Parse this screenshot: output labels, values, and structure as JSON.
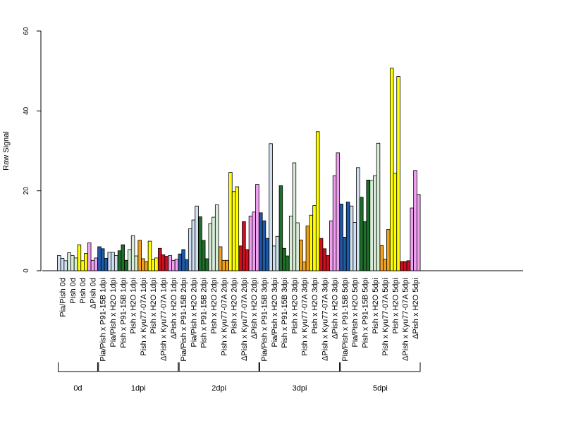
{
  "chart_data": {
    "type": "bar",
    "ylabel": "Raw Signal",
    "xlabel": "",
    "ylim": [
      0,
      60
    ],
    "yticks": [
      0,
      20,
      40,
      60
    ],
    "grid": false,
    "legend": "none",
    "categories": [
      "Pia/Pish 0d",
      "Pish 0d",
      "Pish 0d",
      "ΔPish 0d",
      "Pia/Pish x P91-15B 1dpi",
      "Pia/Pish x H2O 1dpi",
      "Pish x P91-15B 1dpi",
      "Pish x H2O 1dpi",
      "Pish x Kyu77-07A 1dpi",
      "Pish x H2O 1dpi",
      "ΔPish x Kyu77-07A 1dpi",
      "ΔPish x H2O 1dpi",
      "Pia/Pish x P91-15B 2dpi",
      "Pia/Pish x H2O 2dpi",
      "Pish x P91-15B 2dpi",
      "Pish x H2O 2dpi",
      "Pish x Kyu77-07A 2dpi",
      "Pish x H2O 2dpi",
      "ΔPish x Kyu77-07A 2dpi",
      "ΔPish x H2O 2dpi",
      "Pia/Pish x P91-15B 3dpi",
      "Pia/Pish x H2O 3dpi",
      "Pish x P91-15B 3dpi",
      "Pish x H2O 3dpi",
      "Pish x Kyu77-07A 3dpi",
      "Pish x H2O 3dpi",
      "ΔPish x Kyu77-07A 3dpi",
      "ΔPish x H2O 3dpi",
      "Pia/Pish x P91-15B 5dpi",
      "Pia/Pish x H2O 5dpi",
      "Pish x P91-15B 5dpi",
      "Pish x H2O 5dpi",
      "Pish x Kyu77-07A 5dpi",
      "Pish x H2O 5dpi",
      "ΔPish x Kyu77-07A 5dpi",
      "ΔPish x H2O 5dpi"
    ],
    "colors": [
      "#d0e0f0",
      "#d8ecd8",
      "#ffff00",
      "#f0a0f0",
      "#1f5aa6",
      "#d0e0f0",
      "#1f6e2a",
      "#d8ecd8",
      "#f0a020",
      "#ffff00",
      "#cc1020",
      "#f0a0f0",
      "#1f5aa6",
      "#d0e0f0",
      "#1f6e2a",
      "#d8ecd8",
      "#f0a020",
      "#ffff00",
      "#cc1020",
      "#f0a0f0",
      "#1f5aa6",
      "#d0e0f0",
      "#1f6e2a",
      "#d8ecd8",
      "#f0a020",
      "#ffff00",
      "#cc1020",
      "#f0a0f0",
      "#1f5aa6",
      "#d0e0f0",
      "#1f6e2a",
      "#d8ecd8",
      "#f0a020",
      "#ffff00",
      "#cc1020",
      "#f0a0f0"
    ],
    "values": [
      [
        3.8,
        3.1,
        2.5
      ],
      [
        4.5,
        3.8,
        3.2
      ],
      [
        6.5,
        2.5,
        4.3
      ],
      [
        7.0,
        2.6,
        3.2
      ],
      [
        6.0,
        5.5,
        3.1
      ],
      [
        4.6,
        4.6,
        3.8
      ],
      [
        5.0,
        6.5,
        2.6
      ],
      [
        5.3,
        8.8,
        3.7
      ],
      [
        7.6,
        3.0,
        2.3
      ],
      [
        7.4,
        2.8,
        3.2
      ],
      [
        5.6,
        4.0,
        3.6
      ],
      [
        3.8,
        2.6,
        2.9
      ],
      [
        4.2,
        5.3,
        2.8
      ],
      [
        10.5,
        12.7,
        16.2
      ],
      [
        13.5,
        7.6,
        3.0
      ],
      [
        11.8,
        13.4,
        16.5
      ],
      [
        6.0,
        2.6,
        2.6
      ],
      [
        24.6,
        19.8,
        21.0
      ],
      [
        6.2,
        12.3,
        5.3
      ],
      [
        13.7,
        14.7,
        21.6
      ],
      [
        14.5,
        12.5,
        8.1
      ],
      [
        31.8,
        6.2,
        8.6
      ],
      [
        21.3,
        5.6,
        3.7
      ],
      [
        13.7,
        27.0,
        12.0
      ],
      [
        7.7,
        2.2,
        11.2
      ],
      [
        13.9,
        16.3,
        34.8
      ],
      [
        8.1,
        5.5,
        3.8
      ],
      [
        12.5,
        23.8,
        29.5
      ],
      [
        16.7,
        8.4,
        17.2
      ],
      [
        16.2,
        12.1,
        25.8
      ],
      [
        18.4,
        12.3,
        22.7
      ],
      [
        22.6,
        23.8,
        31.9
      ],
      [
        6.3,
        2.9,
        10.3
      ],
      [
        50.7,
        24.4,
        48.6
      ],
      [
        2.3,
        2.3,
        2.5
      ],
      [
        15.7,
        25.1,
        19.1
      ]
    ],
    "groups": [
      {
        "label": "0d",
        "count": 4
      },
      {
        "label": "1dpi",
        "count": 8
      },
      {
        "label": "2dpi",
        "count": 8
      },
      {
        "label": "3dpi",
        "count": 8
      },
      {
        "label": "5dpi",
        "count": 8
      }
    ]
  }
}
